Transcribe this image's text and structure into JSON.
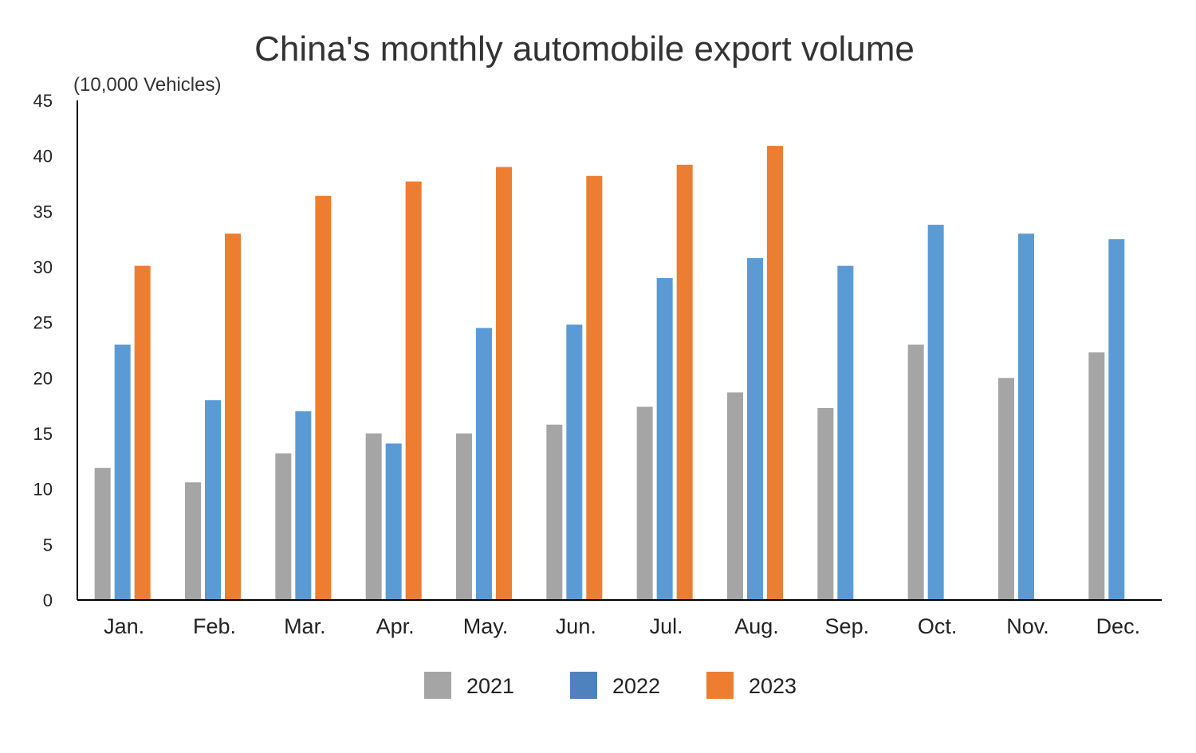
{
  "chart_data": {
    "type": "bar",
    "title": "China's monthly automobile export volume",
    "ylabel": "(10,000 Vehicles)",
    "xlabel": "",
    "ylim": [
      0,
      45
    ],
    "yticks": [
      0,
      5,
      10,
      15,
      20,
      25,
      30,
      35,
      40,
      45
    ],
    "categories": [
      "Jan.",
      "Feb.",
      "Mar.",
      "Apr.",
      "May.",
      "Jun.",
      "Jul.",
      "Aug.",
      "Sep.",
      "Oct.",
      "Nov.",
      "Dec."
    ],
    "series": [
      {
        "name": "2021",
        "color": "#a5a5a5",
        "values": [
          11.9,
          10.6,
          13.2,
          15.0,
          15.0,
          15.8,
          17.4,
          18.7,
          17.3,
          23.0,
          20.0,
          22.3
        ]
      },
      {
        "name": "2022",
        "color": "#5b9bd5",
        "values": [
          23.0,
          18.0,
          17.0,
          14.1,
          24.5,
          24.8,
          29.0,
          30.8,
          30.1,
          33.8,
          33.0,
          32.5
        ]
      },
      {
        "name": "2023",
        "color": "#ed7d31",
        "values": [
          30.1,
          33.0,
          36.4,
          37.7,
          39.0,
          38.2,
          39.2,
          40.9,
          null,
          null,
          null,
          null
        ]
      }
    ],
    "legend": {
      "position": "bottom-center",
      "swatch_colors": [
        "#a5a5a5",
        "#4f81bd",
        "#ed7d31"
      ]
    },
    "grid": false
  }
}
